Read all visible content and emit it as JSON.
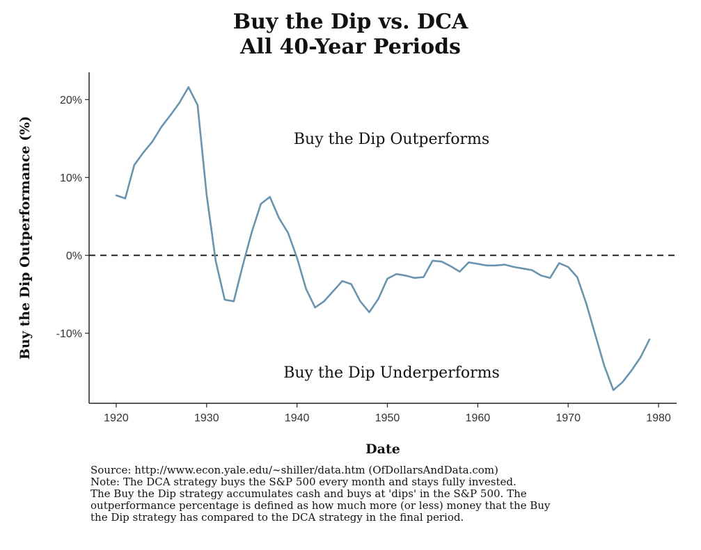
{
  "chart_data": {
    "type": "line",
    "title": "Buy the Dip vs. DCA",
    "subtitle": "All 40-Year Periods",
    "xlabel": "Date",
    "ylabel": "Buy the Dip Outperformance (%)",
    "xlim": [
      1917,
      1982
    ],
    "ylim": [
      -19,
      23.5
    ],
    "xticks": [
      1920,
      1930,
      1940,
      1950,
      1960,
      1970,
      1980
    ],
    "yticks": [
      20,
      10,
      0,
      -10
    ],
    "ytick_labels": [
      "20%",
      "10%",
      "0%",
      "-10%"
    ],
    "grid": false,
    "reference_line": {
      "y": 0,
      "style": "dashed"
    },
    "line_color": "#6a93ae",
    "annotations": [
      {
        "text": "Buy the Dip Outperforms",
        "x": 1950,
        "y": 15
      },
      {
        "text": "Buy the Dip Underperforms",
        "x": 1950,
        "y": -15
      }
    ],
    "x": [
      1920,
      1921,
      1922,
      1923,
      1924,
      1925,
      1926,
      1927,
      1928,
      1929,
      1930,
      1931,
      1932,
      1933,
      1934,
      1935,
      1936,
      1937,
      1938,
      1939,
      1940,
      1941,
      1942,
      1943,
      1944,
      1945,
      1946,
      1947,
      1948,
      1949,
      1950,
      1951,
      1952,
      1953,
      1954,
      1955,
      1956,
      1957,
      1958,
      1959,
      1960,
      1961,
      1962,
      1963,
      1964,
      1965,
      1966,
      1967,
      1968,
      1969,
      1970,
      1971,
      1972,
      1973,
      1974,
      1975,
      1976,
      1977,
      1978,
      1979
    ],
    "values": [
      7.7,
      7.3,
      11.6,
      13.2,
      14.6,
      16.5,
      18.0,
      19.6,
      21.6,
      19.3,
      7.8,
      -0.7,
      -5.7,
      -5.9,
      -1.3,
      3.0,
      6.6,
      7.5,
      4.8,
      2.9,
      -0.3,
      -4.3,
      -6.7,
      -5.9,
      -4.6,
      -3.3,
      -3.7,
      -5.9,
      -7.3,
      -5.6,
      -3.0,
      -2.4,
      -2.6,
      -2.9,
      -2.8,
      -0.7,
      -0.8,
      -1.4,
      -2.1,
      -0.9,
      -1.1,
      -1.3,
      -1.3,
      -1.2,
      -1.5,
      -1.7,
      -1.9,
      -2.6,
      -2.9,
      -1.0,
      -1.5,
      -2.8,
      -6.2,
      -10.2,
      -14.2,
      -17.3,
      -16.3,
      -14.8,
      -13.1,
      -10.8
    ]
  },
  "notes": [
    "Source:  http://www.econ.yale.edu/~shiller/data.htm (OfDollarsAndData.com)",
    "Note: The DCA strategy buys the S&P 500 every month and stays fully invested.",
    "The Buy the Dip strategy accumulates cash and buys at 'dips' in the S&P 500. The",
    "outperformance percentage is defined as how much more (or less) money that the Buy",
    "the Dip strategy has compared to the DCA strategy in the final period."
  ]
}
